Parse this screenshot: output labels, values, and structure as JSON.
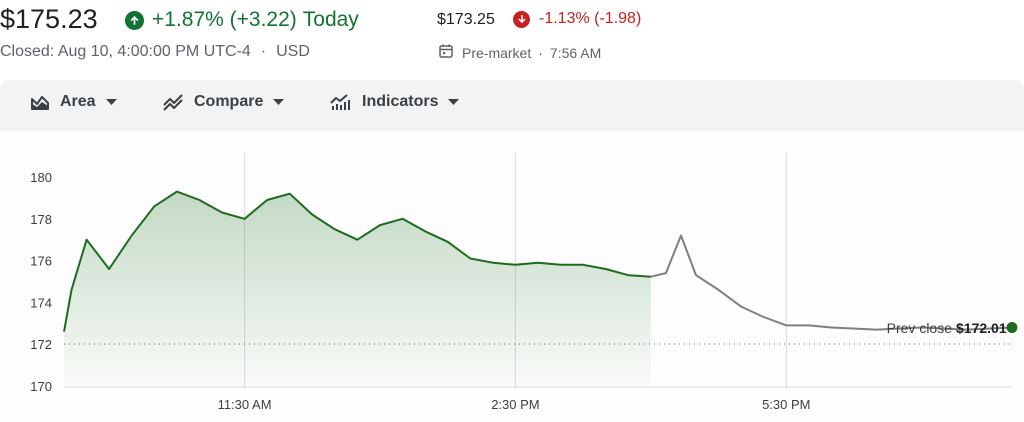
{
  "quote": {
    "price": "$175.23",
    "change": "+1.87% (+3.22)",
    "period": "Today",
    "closed_info": "Closed: Aug 10, 4:00:00 PM UTC-4",
    "separator": "·",
    "currency": "USD"
  },
  "premarket": {
    "price": "$173.25",
    "change": "-1.13% (-1.98)",
    "label": "Pre-market",
    "separator": "·",
    "time": "7:56 AM"
  },
  "toolbar": {
    "area_label": "Area",
    "compare_label": "Compare",
    "indicators_label": "Indicators"
  },
  "colors": {
    "up": "#137333",
    "down": "#c5221f",
    "line": "#1e6b1e",
    "extended_line": "#7f7f7f"
  },
  "icons": {
    "up": "arrow-up-circle-icon",
    "down": "arrow-down-circle-icon",
    "calendar": "calendar-icon",
    "area": "area-chart-icon",
    "compare": "compare-icon",
    "indicators": "indicators-icon",
    "caret": "caret-down-icon"
  },
  "chart_data": {
    "type": "area",
    "y_ticks": [
      "180",
      "178",
      "176",
      "174",
      "172",
      "170"
    ],
    "x_ticks": [
      "11:30 AM",
      "2:30 PM",
      "5:30 PM"
    ],
    "ylim": [
      170,
      180.5
    ],
    "prev_close_label": "Prev close",
    "prev_close_value": "$172.01",
    "prev_close": 172.01,
    "regular_session": {
      "x": [
        "9:30",
        "9:35",
        "9:45",
        "10:00",
        "10:15",
        "10:30",
        "10:45",
        "11:00",
        "11:15",
        "11:30",
        "11:45",
        "12:00",
        "12:15",
        "12:30",
        "12:45",
        "13:00",
        "13:15",
        "13:30",
        "13:45",
        "14:00",
        "14:15",
        "14:30",
        "14:45",
        "15:00",
        "15:15",
        "15:30",
        "15:45",
        "16:00"
      ],
      "y": [
        172.6,
        174.6,
        177.0,
        175.6,
        177.2,
        178.6,
        179.3,
        178.9,
        178.3,
        178.0,
        178.9,
        179.2,
        178.2,
        177.5,
        177.0,
        177.7,
        178.0,
        177.4,
        176.9,
        176.1,
        175.9,
        175.8,
        175.9,
        175.8,
        175.8,
        175.6,
        175.3,
        175.23
      ]
    },
    "extended_session": {
      "x": [
        "16:00",
        "16:10",
        "16:20",
        "16:30",
        "16:45",
        "17:00",
        "17:15",
        "17:30",
        "17:45",
        "18:00",
        "18:30",
        "19:00",
        "19:30",
        "20:00"
      ],
      "y": [
        175.23,
        175.4,
        177.2,
        175.3,
        174.6,
        173.8,
        173.3,
        172.9,
        172.9,
        172.8,
        172.7,
        172.8,
        172.7,
        172.8
      ]
    }
  }
}
